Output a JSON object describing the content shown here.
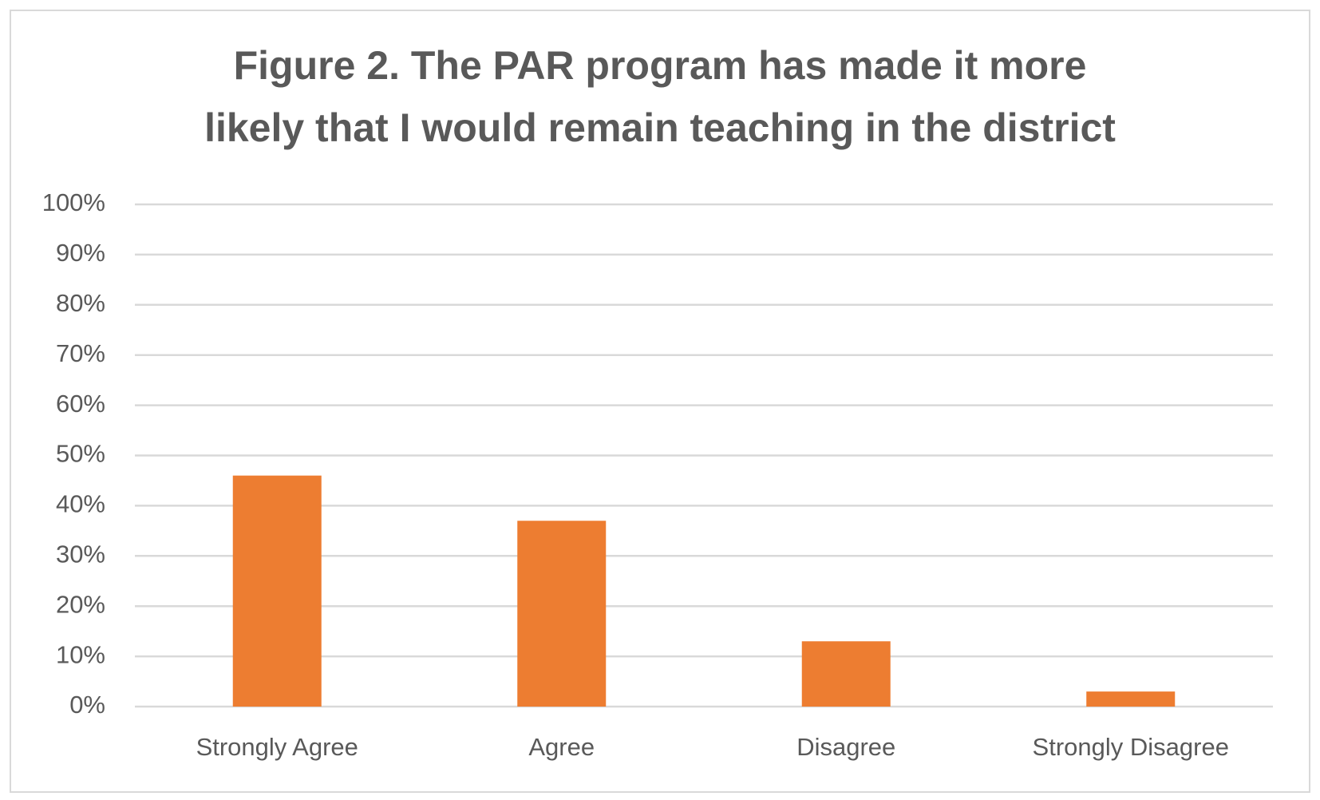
{
  "chart_data": {
    "type": "bar",
    "title": [
      "Figure 2. The PAR program has made it more",
      "likely that I would remain teaching in the district"
    ],
    "categories": [
      "Strongly Agree",
      "Agree",
      "Disagree",
      "Strongly Disagree"
    ],
    "values": [
      46,
      37,
      13,
      3
    ],
    "color": "#ed7d31",
    "ylim": [
      0,
      100
    ],
    "yticks": [
      {
        "value": 0,
        "label": "0%"
      },
      {
        "value": 10,
        "label": "10%"
      },
      {
        "value": 20,
        "label": "20%"
      },
      {
        "value": 30,
        "label": "30%"
      },
      {
        "value": 40,
        "label": "40%"
      },
      {
        "value": 50,
        "label": "50%"
      },
      {
        "value": 60,
        "label": "60%"
      },
      {
        "value": 70,
        "label": "70%"
      },
      {
        "value": 80,
        "label": "80%"
      },
      {
        "value": 90,
        "label": "90%"
      },
      {
        "value": 100,
        "label": "100%"
      }
    ],
    "grid": true
  }
}
